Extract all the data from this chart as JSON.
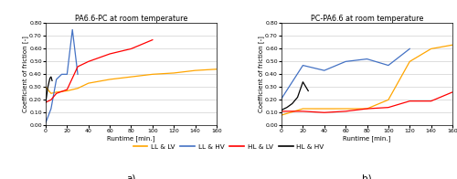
{
  "title_a": "PA6.6-PC at room temperature",
  "title_b": "PC-PA6.6 at room temperature",
  "xlabel": "Runtime [min.]",
  "ylabel": "Coefficient of friction [-]",
  "ylim": [
    0.0,
    0.8
  ],
  "yticks": [
    0.0,
    0.1,
    0.2,
    0.3,
    0.4,
    0.5,
    0.6,
    0.7,
    0.8
  ],
  "xlim": [
    0,
    160
  ],
  "xticks": [
    0,
    20,
    40,
    60,
    80,
    100,
    120,
    140,
    160
  ],
  "label_a": "a)",
  "label_b": "b)",
  "colors": {
    "LL_LV": "#FFA500",
    "LL_HV": "#4472C4",
    "HL_LV": "#FF0000",
    "HL_HV": "#000000"
  },
  "legend_labels": [
    "LL & LV",
    "LL & HV",
    "HL & LV",
    "HL & HV"
  ],
  "plot_a": {
    "LL_LV": {
      "x": [
        0,
        5,
        10,
        20,
        30,
        40,
        60,
        80,
        100,
        120,
        140,
        160
      ],
      "y": [
        0.3,
        0.25,
        0.26,
        0.27,
        0.29,
        0.33,
        0.36,
        0.38,
        0.4,
        0.41,
        0.43,
        0.44
      ]
    },
    "LL_HV": {
      "x": [
        0,
        5,
        10,
        15,
        20,
        25,
        30
      ],
      "y": [
        0.02,
        0.13,
        0.36,
        0.4,
        0.4,
        0.75,
        0.4
      ]
    },
    "HL_LV": {
      "x": [
        0,
        5,
        10,
        20,
        30,
        40,
        60,
        80,
        100
      ],
      "y": [
        0.18,
        0.2,
        0.25,
        0.28,
        0.46,
        0.5,
        0.56,
        0.6,
        0.67
      ]
    },
    "HL_HV": {
      "x": [
        0,
        2,
        4,
        5,
        6
      ],
      "y": [
        0.18,
        0.3,
        0.37,
        0.38,
        0.35
      ]
    }
  },
  "plot_b": {
    "LL_LV": {
      "x": [
        0,
        20,
        40,
        60,
        80,
        100,
        120,
        140,
        160
      ],
      "y": [
        0.08,
        0.13,
        0.13,
        0.13,
        0.13,
        0.2,
        0.5,
        0.6,
        0.63
      ]
    },
    "LL_HV": {
      "x": [
        0,
        20,
        40,
        60,
        80,
        100,
        120
      ],
      "y": [
        0.21,
        0.47,
        0.43,
        0.5,
        0.52,
        0.47,
        0.6
      ]
    },
    "HL_LV": {
      "x": [
        0,
        20,
        40,
        60,
        80,
        100,
        120,
        140,
        160
      ],
      "y": [
        0.11,
        0.11,
        0.1,
        0.11,
        0.13,
        0.14,
        0.19,
        0.19,
        0.26
      ]
    },
    "HL_HV": {
      "x": [
        0,
        5,
        10,
        15,
        20,
        25
      ],
      "y": [
        0.12,
        0.14,
        0.17,
        0.22,
        0.34,
        0.27
      ]
    }
  }
}
